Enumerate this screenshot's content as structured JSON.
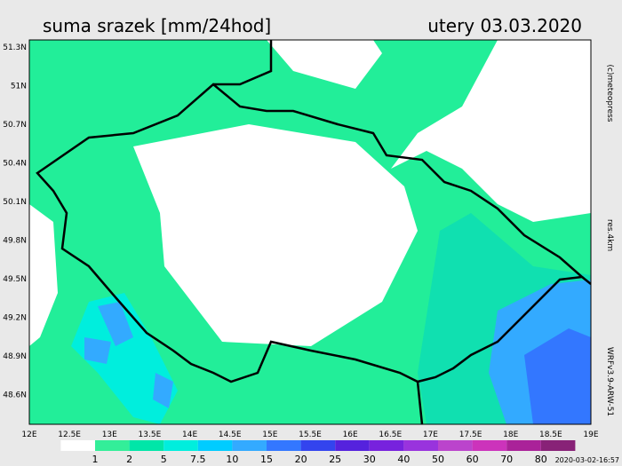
{
  "header": {
    "title": "suma srazek [mm/24hod]",
    "date": "utery 03.03.2020"
  },
  "map": {
    "lat_labels": [
      "51.3N",
      "51N",
      "50.7N",
      "50.4N",
      "50.1N",
      "49.8N",
      "49.5N",
      "49.2N",
      "48.9N",
      "48.6N"
    ],
    "lon_labels": [
      "12E",
      "12.5E",
      "13E",
      "13.5E",
      "14E",
      "14.5E",
      "15E",
      "15.5E",
      "16E",
      "16.5E",
      "17E",
      "17.5E",
      "18E",
      "18.5E",
      "19E"
    ]
  },
  "side": {
    "copyright": "(c)meteopress",
    "resolution": "res.4km",
    "model": "WRFv3.9-ARW-51"
  },
  "legend": {
    "labels": [
      "1",
      "2",
      "5",
      "7.5",
      "10",
      "15",
      "20",
      "25",
      "30",
      "40",
      "50",
      "60",
      "70",
      "80"
    ],
    "colors": [
      "#ffffff",
      "#33ee99",
      "#00e6a8",
      "#00eedd",
      "#00ccff",
      "#33aaff",
      "#3377ff",
      "#3344ee",
      "#5522dd",
      "#7722dd",
      "#9933dd",
      "#bb44cc",
      "#cc33bb",
      "#aa2299",
      "#882277"
    ]
  },
  "footer": {
    "timestamp": "2020-03-02-16:57"
  }
}
